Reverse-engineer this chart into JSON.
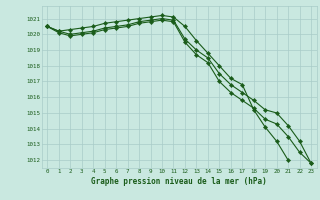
{
  "xlabel": "Graphe pression niveau de la mer (hPa)",
  "xlim": [
    -0.5,
    23.5
  ],
  "ylim": [
    1011.5,
    1021.8
  ],
  "yticks": [
    1012,
    1013,
    1014,
    1015,
    1016,
    1017,
    1018,
    1019,
    1020,
    1021
  ],
  "xticks": [
    0,
    1,
    2,
    3,
    4,
    5,
    6,
    7,
    8,
    9,
    10,
    11,
    12,
    13,
    14,
    15,
    16,
    17,
    18,
    19,
    20,
    21,
    22,
    23
  ],
  "background_color": "#c9e8e0",
  "grid_color": "#a8ccc8",
  "line_color": "#1a5c1a",
  "line1_x": [
    0,
    1,
    2,
    3,
    4,
    5,
    6,
    7,
    8,
    9,
    10,
    11,
    12,
    13,
    14,
    15,
    16,
    17,
    18,
    19,
    20,
    21
  ],
  "line1_y": [
    1020.5,
    1020.2,
    1020.3,
    1020.4,
    1020.5,
    1020.7,
    1020.8,
    1020.9,
    1021.0,
    1021.1,
    1021.2,
    1021.1,
    1020.5,
    1019.6,
    1018.8,
    1018.0,
    1017.2,
    1016.8,
    1015.2,
    1014.1,
    1013.2,
    1012.0
  ],
  "line2_x": [
    0,
    1,
    2,
    3,
    4,
    5,
    6,
    7,
    8,
    9,
    10,
    11,
    12,
    13,
    14,
    15,
    16,
    17,
    18,
    19,
    20,
    21,
    22,
    23
  ],
  "line2_y": [
    1020.5,
    1020.2,
    1020.0,
    1020.1,
    1020.2,
    1020.4,
    1020.5,
    1020.6,
    1020.8,
    1020.9,
    1021.0,
    1020.9,
    1019.7,
    1019.0,
    1018.5,
    1017.5,
    1016.8,
    1016.3,
    1015.8,
    1015.2,
    1015.0,
    1014.2,
    1013.2,
    1011.8
  ],
  "line3_x": [
    0,
    1,
    2,
    3,
    4,
    5,
    6,
    7,
    8,
    9,
    10,
    11,
    12,
    13,
    14,
    15,
    16,
    17,
    18,
    19,
    20,
    21,
    22,
    23
  ],
  "line3_y": [
    1020.5,
    1020.1,
    1019.9,
    1020.0,
    1020.1,
    1020.3,
    1020.4,
    1020.5,
    1020.7,
    1020.8,
    1020.9,
    1020.8,
    1019.5,
    1018.7,
    1018.2,
    1017.0,
    1016.3,
    1015.8,
    1015.3,
    1014.6,
    1014.3,
    1013.5,
    1012.5,
    1011.8
  ]
}
